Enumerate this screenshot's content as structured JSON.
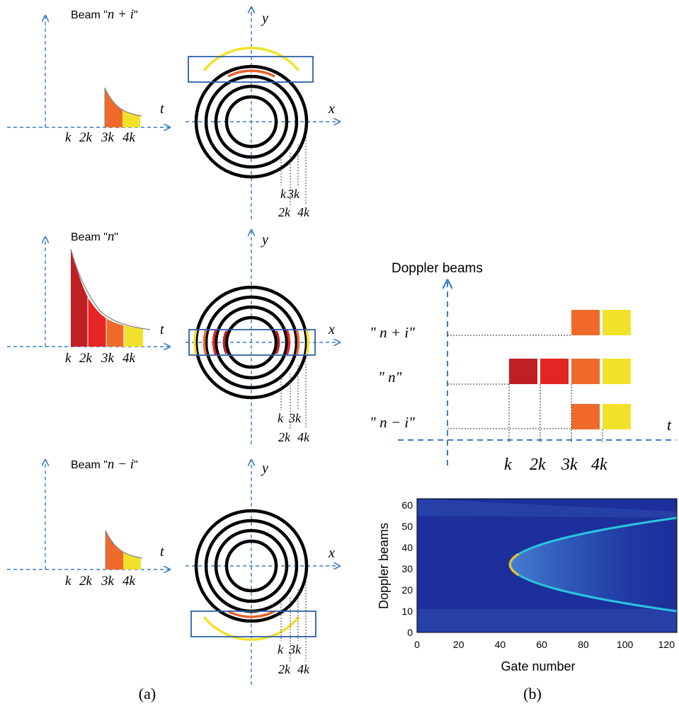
{
  "panels": {
    "a_caption": "(a)",
    "b_caption": "(b)"
  },
  "beams": [
    {
      "label_prefix": "Beam \"",
      "label_var": "n + i",
      "label_suffix": "\"",
      "box": "top",
      "ring_colors": [
        "#f2e12a",
        "#e8602c",
        null,
        null
      ]
    },
    {
      "label_prefix": "Beam \"",
      "label_var": "n",
      "label_suffix": "\"",
      "box": "middle",
      "ring_colors": [
        "#f2e12a",
        "#e8602c",
        "#e52524",
        "#c01f24"
      ]
    },
    {
      "label_prefix": "Beam \"",
      "label_var": "n − i",
      "label_suffix": "\"",
      "box": "bottom",
      "ring_colors": [
        "#f2e12a",
        "#e8602c",
        null,
        null
      ]
    }
  ],
  "axis_labels": {
    "t": "t",
    "x": "x",
    "y": "y"
  },
  "gate_ticks": [
    "k",
    "2k",
    "3k",
    "4k"
  ],
  "gate_colors": [
    "#c01f24",
    "#e52524",
    "#ef6a2a",
    "#f2e12a"
  ],
  "doppler_schematic": {
    "title": "Doppler beams",
    "rows": [
      {
        "label": "\" n + i\"",
        "cells": [
          false,
          false,
          true,
          true
        ]
      },
      {
        "label": "\" n\"",
        "cells": [
          true,
          true,
          true,
          true
        ]
      },
      {
        "label": "\" n − i\"",
        "cells": [
          false,
          false,
          true,
          true
        ]
      }
    ],
    "t_label": "t",
    "ticks": [
      "k",
      "2k",
      "3k",
      "4k"
    ]
  },
  "chart_data": {
    "type": "heatmap",
    "xlabel": "Gate number",
    "ylabel": "Doppler beams",
    "xlim": [
      0,
      125
    ],
    "ylim": [
      0,
      63
    ],
    "xticks": [
      0,
      20,
      40,
      60,
      80,
      100,
      120
    ],
    "yticks": [
      0,
      10,
      20,
      30,
      40,
      50,
      60
    ],
    "background_color": "#1c2f9a",
    "parabola_vertex": {
      "gate": 45,
      "beam": 32
    },
    "parabola_ends": {
      "gate": 125,
      "beam_upper": 54,
      "beam_lower": 10
    },
    "band_upper_end_beam": 57,
    "band_lower_end_beam": 11
  }
}
